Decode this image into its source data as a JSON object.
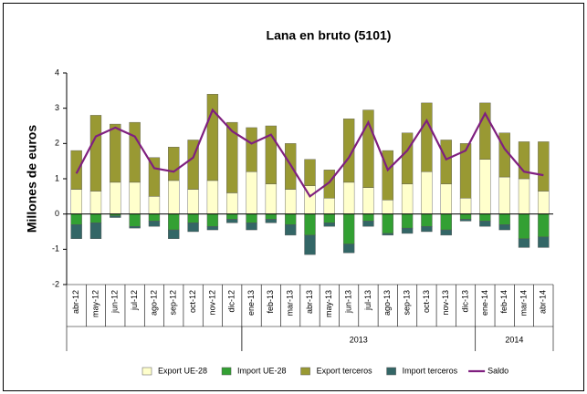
{
  "chart_data": {
    "type": "bar",
    "stacked": true,
    "title": "Lana en bruto (5101)",
    "y_label": "Millones de euros",
    "categories": [
      "abr-12",
      "may-12",
      "jun-12",
      "jul-12",
      "ago-12",
      "sep-12",
      "oct-12",
      "nov-12",
      "dic-12",
      "ene-13",
      "feb-13",
      "mar-13",
      "abr-13",
      "may-13",
      "jun-13",
      "jul-13",
      "ago-13",
      "sep-13",
      "oct-13",
      "nov-13",
      "dic-13",
      "ene-14",
      "feb-14",
      "mar-14",
      "abr-14"
    ],
    "groups": [
      {
        "label": null,
        "from": "abr-12",
        "to": "dic-12"
      },
      {
        "label": "2013",
        "from": "ene-13",
        "to": "dic-13"
      },
      {
        "label": "2014",
        "from": "ene-14",
        "to": "abr-14"
      }
    ],
    "series": [
      {
        "name": "Export UE-28",
        "type": "bar",
        "color": "#ffffcc",
        "values": [
          0.7,
          0.65,
          0.9,
          0.9,
          0.5,
          0.95,
          0.7,
          0.95,
          0.6,
          1.2,
          0.85,
          0.7,
          0.8,
          0.45,
          0.9,
          0.75,
          0.4,
          0.85,
          1.2,
          0.85,
          0.45,
          1.55,
          1.05,
          1.0,
          0.65
        ]
      },
      {
        "name": "Import UE-28",
        "type": "bar",
        "color": "#33a033",
        "values": [
          -0.3,
          -0.25,
          -0.05,
          -0.35,
          -0.2,
          -0.45,
          -0.25,
          -0.35,
          -0.15,
          -0.25,
          -0.15,
          -0.3,
          -0.6,
          -0.25,
          -0.85,
          -0.2,
          -0.55,
          -0.4,
          -0.35,
          -0.45,
          -0.15,
          -0.2,
          -0.3,
          -0.7,
          -0.65
        ]
      },
      {
        "name": "Export terceros",
        "type": "bar",
        "color": "#999933",
        "values": [
          1.1,
          2.15,
          1.65,
          1.7,
          1.1,
          0.95,
          1.4,
          2.45,
          2.0,
          1.25,
          1.65,
          1.3,
          0.75,
          0.8,
          1.8,
          2.2,
          1.4,
          1.45,
          1.95,
          1.25,
          1.55,
          1.6,
          1.25,
          1.05,
          1.4
        ]
      },
      {
        "name": "Import terceros",
        "type": "bar",
        "color": "#336666",
        "values": [
          -0.4,
          -0.45,
          -0.05,
          -0.05,
          -0.15,
          -0.25,
          -0.25,
          -0.1,
          -0.1,
          -0.2,
          -0.1,
          -0.3,
          -0.55,
          -0.1,
          -0.25,
          -0.15,
          -0.05,
          -0.15,
          -0.15,
          -0.15,
          -0.05,
          -0.15,
          -0.15,
          -0.25,
          -0.3
        ]
      },
      {
        "name": "Saldo",
        "type": "line",
        "color": "#7f1f7f",
        "values": [
          1.15,
          2.2,
          2.45,
          2.2,
          1.3,
          1.2,
          1.6,
          2.95,
          2.35,
          2.0,
          2.25,
          1.4,
          0.5,
          0.9,
          1.6,
          2.6,
          1.25,
          1.8,
          2.65,
          1.55,
          1.8,
          2.85,
          1.85,
          1.2,
          1.1
        ]
      }
    ],
    "ylim": [
      -2,
      4
    ],
    "yticks": [
      -2,
      -1,
      0,
      1,
      2,
      3,
      4
    ]
  }
}
